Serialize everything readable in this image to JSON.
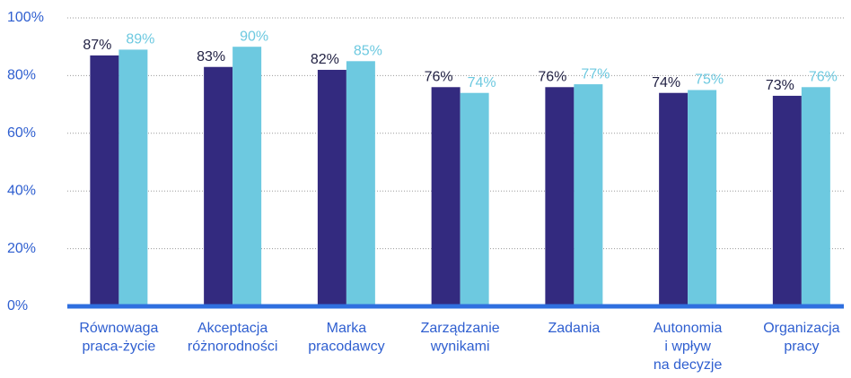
{
  "chart_data": {
    "type": "bar",
    "categories": [
      [
        "Równowaga",
        "praca-życie"
      ],
      [
        "Akceptacja",
        "różnorodności"
      ],
      [
        "Marka",
        "pracodawcy"
      ],
      [
        "Zarządzanie",
        "wynikami"
      ],
      [
        "Zadania"
      ],
      [
        "Autonomia",
        "i wpływ",
        "na decyzje"
      ],
      [
        "Organizacja",
        "pracy"
      ]
    ],
    "series": [
      {
        "color": "#332a7f",
        "values": [
          87,
          83,
          82,
          76,
          76,
          74,
          73
        ],
        "value_labels": [
          "87%",
          "83%",
          "82%",
          "76%",
          "76%",
          "74%",
          "73%"
        ],
        "label_color": "#222244"
      },
      {
        "color": "#6dc9e0",
        "values": [
          89,
          90,
          85,
          74,
          77,
          75,
          76
        ],
        "value_labels": [
          "89%",
          "90%",
          "85%",
          "74%",
          "77%",
          "75%",
          "76%"
        ],
        "label_color": "#6dc9e0"
      }
    ],
    "ylim": [
      0,
      100
    ],
    "yticks": [
      {
        "value": 0,
        "label": "0%"
      },
      {
        "value": 20,
        "label": "20%"
      },
      {
        "value": 40,
        "label": "40%"
      },
      {
        "value": 60,
        "label": "60%"
      },
      {
        "value": 80,
        "label": "80%"
      },
      {
        "value": 100,
        "label": "100%"
      }
    ],
    "grid": true
  }
}
